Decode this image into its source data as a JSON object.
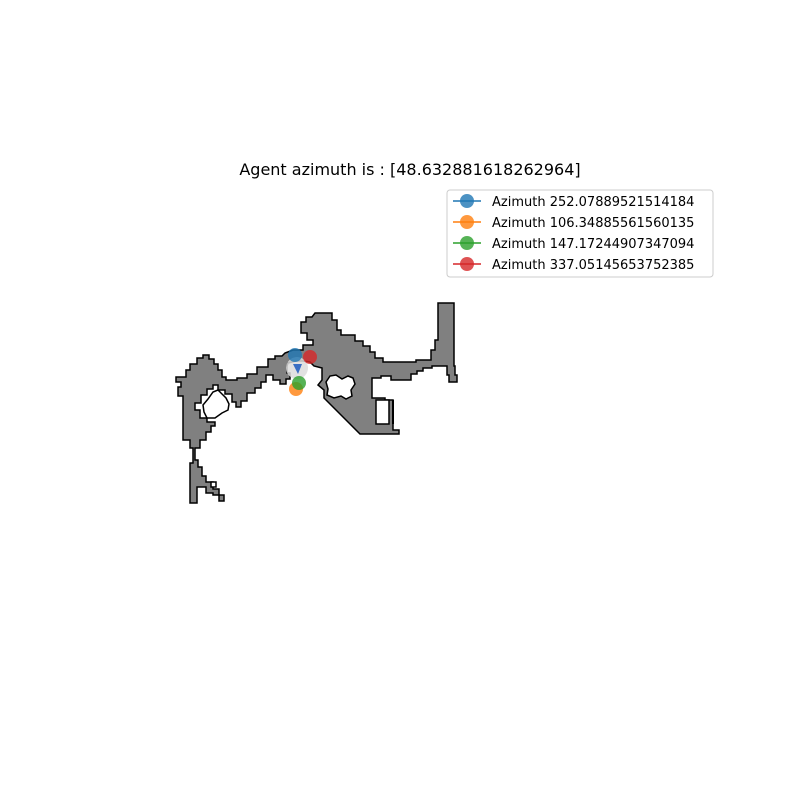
{
  "title": "Agent azimuth is : [48.632881618262964]",
  "agent": {
    "marker_color": "#3a6fc4",
    "halo_color": "#dcdcdc"
  },
  "map": {
    "floor_color": "#808080",
    "wall_color": "#000000",
    "background_color": "#ffffff"
  },
  "legend": {
    "position": "top-right",
    "entries": [
      {
        "label": "Azimuth 252.07889521514184",
        "color": "#1f77b4"
      },
      {
        "label": "Azimuth 106.34885561560135",
        "color": "#ff7f0e"
      },
      {
        "label": "Azimuth 147.17244907347094",
        "color": "#2ca02c"
      },
      {
        "label": "Azimuth 337.05145653752385",
        "color": "#d62728"
      }
    ]
  },
  "chart_data": {
    "type": "scatter",
    "title": "Agent azimuth is : [48.632881618262964]",
    "agent_azimuth": 48.632881618262964,
    "series": [
      {
        "name": "Azimuth 252.07889521514184",
        "azimuth": 252.07889521514184
      },
      {
        "name": "Azimuth 106.34885561560135",
        "azimuth": 106.34885561560135
      },
      {
        "name": "Azimuth 147.17244907347094",
        "azimuth": 147.17244907347094
      },
      {
        "name": "Azimuth 337.05145653752385",
        "azimuth": 337.05145653752385
      }
    ]
  }
}
